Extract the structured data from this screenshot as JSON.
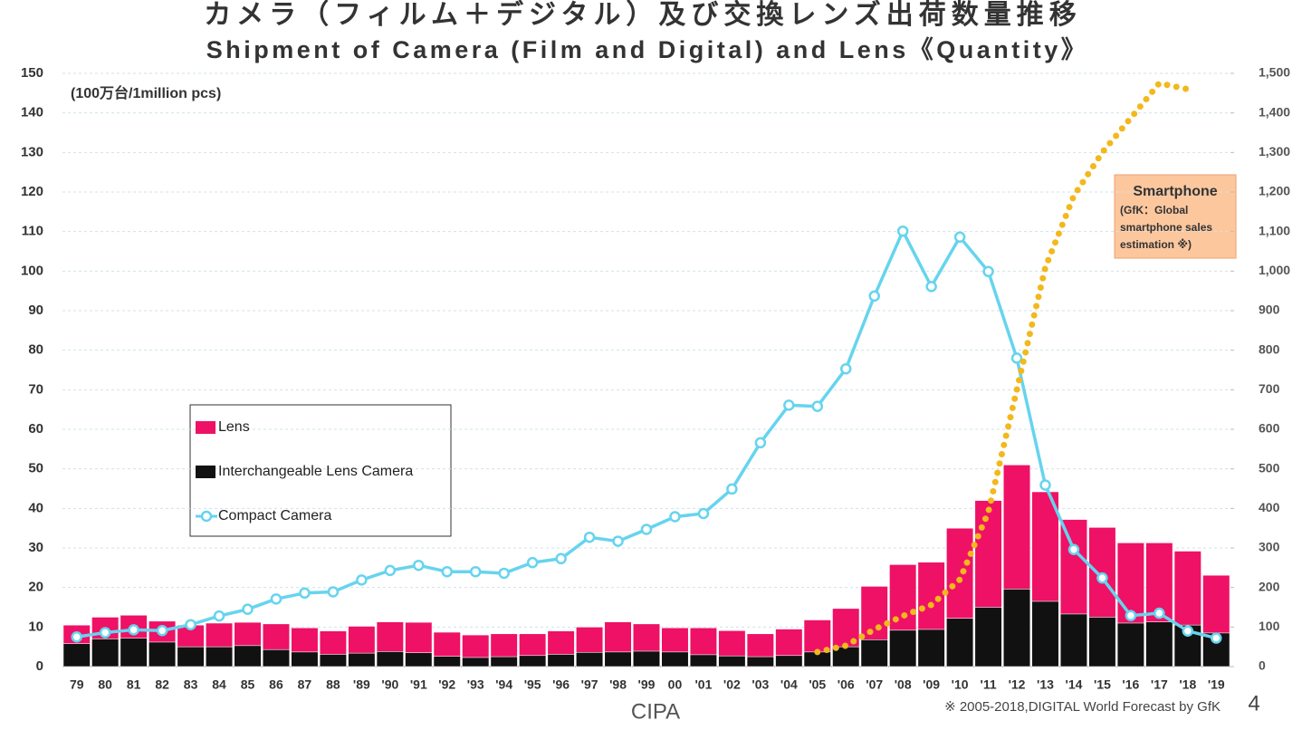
{
  "chart_data": {
    "type": "bar",
    "title": "カメラ（フィルム＋デジタル）及び交換レンズ出荷数量推移",
    "subtitle": "Shipment of Camera (Film and Digital) and Lens《Quantity》",
    "unit_label": "(100万台/1million pcs)",
    "source": "CIPA",
    "footnote": "※ 2005-2018,DIGITAL World Forecast by GfK",
    "page_number": "4",
    "smartphone_note": [
      "(GfK：Global",
      "smartphone sales",
      "estimation ※)"
    ],
    "categories": [
      "79",
      "80",
      "81",
      "82",
      "83",
      "84",
      "85",
      "86",
      "87",
      "88",
      "'89",
      "'90",
      "'91",
      "'92",
      "'93",
      "'94",
      "'95",
      "'96",
      "'97",
      "'98",
      "'99",
      "00",
      "'01",
      "'02",
      "'03",
      "'04",
      "'05",
      "'06",
      "'07",
      "'08",
      "'09",
      "'10",
      "'11",
      "'12",
      "'13",
      "'14",
      "'15",
      "'16",
      "'17",
      "'18",
      "'19"
    ],
    "series": [
      {
        "name": "Lens",
        "type": "bar",
        "color": "#ee1166",
        "values": [
          10.5,
          12.5,
          13,
          11.5,
          10.5,
          11,
          11.2,
          10.8,
          9.8,
          9,
          10.2,
          11.3,
          11.2,
          8.7,
          8,
          8.3,
          8.3,
          9,
          10,
          11.3,
          10.8,
          9.8,
          9.8,
          9.1,
          8.3,
          9.5,
          11.8,
          14.7,
          20.3,
          25.8,
          26.4,
          35,
          42,
          51,
          44.2,
          37.2,
          35.2,
          31.3,
          31.3,
          29.2,
          23.1
        ]
      },
      {
        "name": "Interchangeable Lens Camera",
        "type": "bar",
        "color": "#111111",
        "values": [
          5.8,
          7,
          7.2,
          6.2,
          5,
          5,
          5.3,
          4.3,
          3.7,
          3.1,
          3.4,
          3.8,
          3.5,
          2.6,
          2.3,
          2.5,
          2.8,
          3.1,
          3.6,
          3.7,
          3.9,
          3.7,
          3,
          2.7,
          2.5,
          2.8,
          3.7,
          5,
          6.8,
          9.2,
          9.4,
          12.2,
          15,
          19.6,
          16.5,
          13.3,
          12.5,
          11,
          11.3,
          10.5,
          8.5
        ]
      },
      {
        "name": "Compact Camera",
        "type": "line",
        "color": "#66d4ee",
        "values": [
          7.5,
          8.6,
          9.3,
          9.1,
          10.6,
          12.8,
          14.5,
          17.1,
          18.6,
          18.9,
          21.9,
          24.3,
          25.6,
          24,
          24,
          23.6,
          26.3,
          27.3,
          32.7,
          31.7,
          34.7,
          37.9,
          38.7,
          44.9,
          56.6,
          66.1,
          65.8,
          75.3,
          93.7,
          110.1,
          96.1,
          108.6,
          99.9,
          78,
          45.9,
          29.6,
          22.4,
          12.9,
          13.5,
          9,
          7.2
        ]
      },
      {
        "name": "Smartphone",
        "type": "line",
        "style": "dotted",
        "axis": "y2",
        "color": "#f2b81c",
        "values": [
          null,
          null,
          null,
          null,
          null,
          null,
          null,
          null,
          null,
          null,
          null,
          null,
          null,
          null,
          null,
          null,
          null,
          null,
          null,
          null,
          null,
          null,
          null,
          null,
          null,
          null,
          37,
          53,
          94,
          128,
          156,
          220,
          391,
          700,
          1009,
          1190,
          1300,
          1387,
          1475,
          1460,
          null
        ]
      }
    ],
    "ylim": [
      0,
      150
    ],
    "yticks": [
      0,
      10,
      20,
      30,
      40,
      50,
      60,
      70,
      80,
      90,
      100,
      110,
      120,
      130,
      140,
      150
    ],
    "y2lim": [
      0,
      1500
    ],
    "y2ticks": [
      0,
      100,
      200,
      300,
      400,
      500,
      600,
      700,
      800,
      900,
      {
        "value": 1000,
        "label": "1,000"
      },
      {
        "value": 1100,
        "label": "1,100"
      },
      {
        "value": 1200,
        "label": "1,200"
      },
      {
        "value": 1300,
        "label": "1,300"
      },
      {
        "value": 1400,
        "label": "1,400"
      },
      {
        "value": 1500,
        "label": "1,500"
      }
    ],
    "grid": true
  }
}
